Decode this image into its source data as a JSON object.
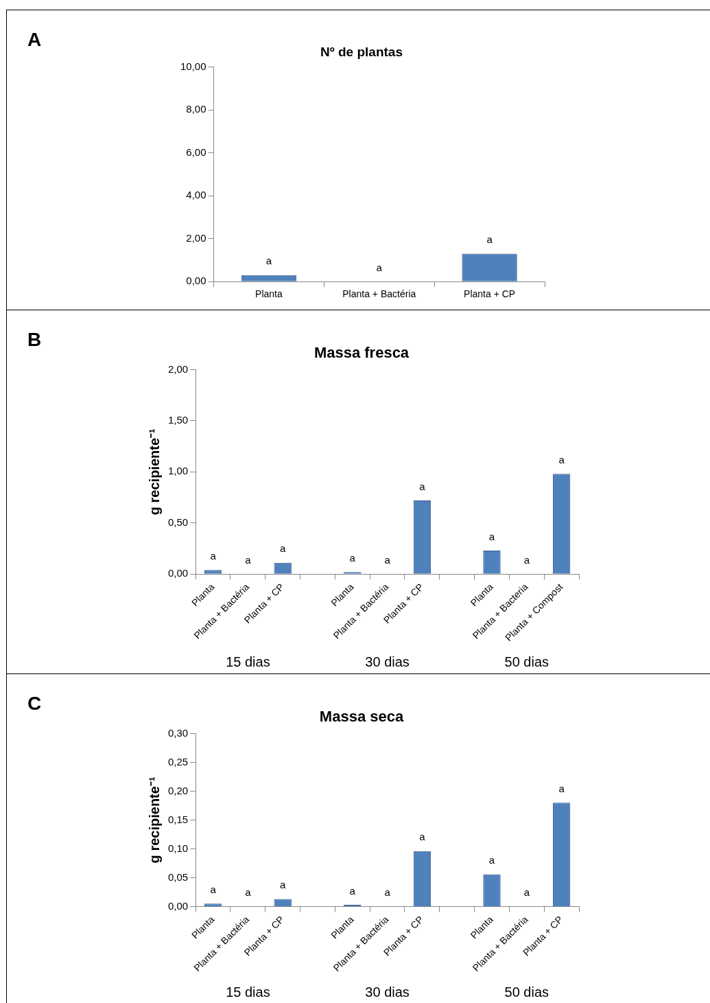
{
  "chart_data": [
    {
      "type": "bar",
      "title": "Nº de plantas",
      "categories": [
        "Planta",
        "Planta + Bactéria",
        "Planta + CP"
      ],
      "values": [
        0.3,
        0,
        1.3
      ],
      "value_labels": [
        "a",
        "a",
        "a"
      ],
      "color": "#4f81bd",
      "ylim": [
        0,
        10
      ],
      "yticks": [
        {
          "value": 0,
          "label": "0,00"
        },
        {
          "value": 2,
          "label": "2,00"
        },
        {
          "value": 4,
          "label": "4,00"
        },
        {
          "value": 6,
          "label": "6,00"
        },
        {
          "value": 8,
          "label": "8,00"
        },
        {
          "value": 10,
          "label": "10,00"
        }
      ],
      "grid": false,
      "legend": false,
      "annotations": [
        "A"
      ]
    },
    {
      "type": "bar",
      "title": "Massa fresca",
      "ylabel": "g recipiente⁻¹",
      "categories": [
        "Planta",
        "Planta + Bactéria",
        "Planta + CP",
        null,
        "Planta",
        "Planta + Bactéria",
        "Planta + CP",
        null,
        "Planta",
        "Planta + Bacteria",
        "Planta + Compost"
      ],
      "values": [
        0.04,
        0,
        0.11,
        null,
        0.02,
        0,
        0.72,
        null,
        0.23,
        0,
        0.98
      ],
      "value_labels": [
        "a",
        "a",
        "a",
        null,
        "a",
        "a",
        "a",
        null,
        "a",
        "a",
        "a"
      ],
      "color": "#4f81bd",
      "ylim": [
        0,
        2
      ],
      "yticks": [
        {
          "value": 0,
          "label": "0,00"
        },
        {
          "value": 0.5,
          "label": "0,50"
        },
        {
          "value": 1,
          "label": "1,00"
        },
        {
          "value": 1.5,
          "label": "1,50"
        },
        {
          "value": 2,
          "label": "2,00"
        }
      ],
      "grid": false,
      "legend": false,
      "annotations": [
        "B",
        "15 dias",
        "30 dias",
        "50 dias"
      ]
    },
    {
      "type": "bar",
      "title": "Massa seca",
      "ylabel": "g recipiente⁻¹",
      "categories": [
        "Planta",
        "Planta + Bactéria",
        "Planta + CP",
        null,
        "Planta",
        "Planta + Bactéria",
        "Planta + CP",
        null,
        "Planta",
        "Planta + Bactéria",
        "Planta + CP"
      ],
      "values": [
        0.005,
        0,
        0.013,
        null,
        0.003,
        0,
        0.096,
        null,
        0.056,
        0,
        0.18
      ],
      "value_labels": [
        "a",
        "a",
        "a",
        null,
        "a",
        "a",
        "a",
        null,
        "a",
        "a",
        "a"
      ],
      "color": "#4f81bd",
      "ylim": [
        0,
        0.3
      ],
      "yticks": [
        {
          "value": 0,
          "label": "0,00"
        },
        {
          "value": 0.05,
          "label": "0,05"
        },
        {
          "value": 0.1,
          "label": "0,10"
        },
        {
          "value": 0.15,
          "label": "0,15"
        },
        {
          "value": 0.2,
          "label": "0,20"
        },
        {
          "value": 0.25,
          "label": "0,25"
        },
        {
          "value": 0.3,
          "label": "0,30"
        }
      ],
      "grid": false,
      "legend": false,
      "annotations": [
        "C",
        "15 dias",
        "30 dias",
        "50 dias"
      ]
    }
  ]
}
